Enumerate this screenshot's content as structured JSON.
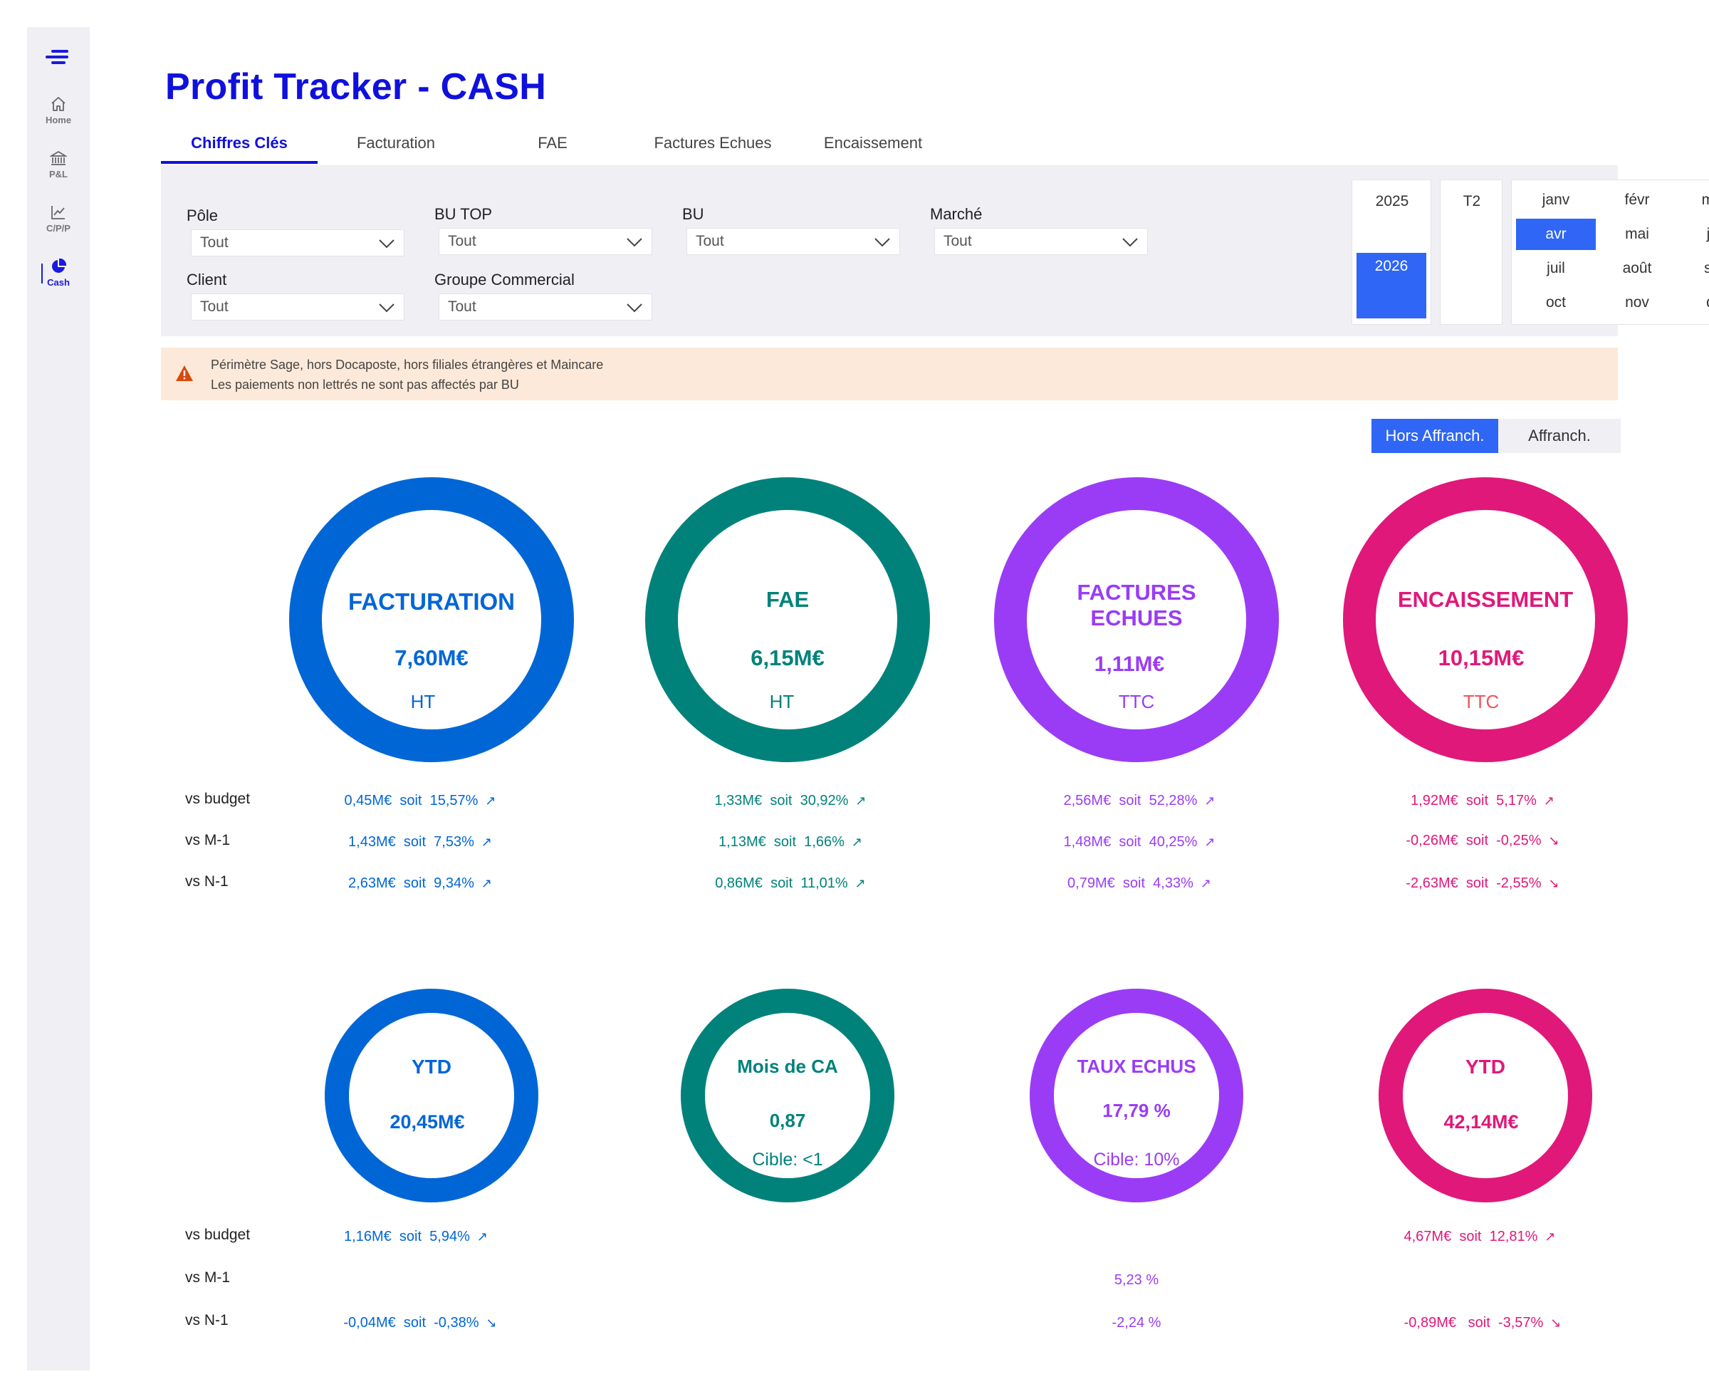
{
  "sidebar": {
    "items": [
      {
        "label": "Home",
        "icon": "home-icon"
      },
      {
        "label": "P&L",
        "icon": "bank-icon"
      },
      {
        "label": "C/P/P",
        "icon": "chart-line-icon"
      },
      {
        "label": "Cash",
        "icon": "pie-icon"
      }
    ],
    "active": "Cash"
  },
  "title": "Profit Tracker - CASH",
  "tabs": [
    "Chiffres Clés",
    "Facturation",
    "FAE",
    "Factures Echues",
    "Encaissement"
  ],
  "filters": {
    "pole": {
      "label": "Pôle",
      "value": "Tout"
    },
    "bu_top": {
      "label": "BU TOP",
      "value": "Tout"
    },
    "bu": {
      "label": "BU",
      "value": "Tout"
    },
    "marche": {
      "label": "Marché",
      "value": "Tout"
    },
    "client": {
      "label": "Client",
      "value": "Tout"
    },
    "groupe": {
      "label": "Groupe Commercial",
      "value": "Tout"
    }
  },
  "years": [
    "2025",
    "2026"
  ],
  "selected_year": "2026",
  "quarter": "T2",
  "months": [
    "janv",
    "févr",
    "mars",
    "avr",
    "mai",
    "juin",
    "juil",
    "août",
    "sept",
    "oct",
    "nov",
    "déc"
  ],
  "selected_month": "avr",
  "warning": {
    "line1": "Périmètre Sage, hors Docaposte, hors filiales étrangères et Maincare",
    "line2": "Les paiements non lettrés ne sont pas affectés par BU"
  },
  "toggle": {
    "active": "Hors Affranch.",
    "inactive": "Affranch."
  },
  "row_labels": {
    "budget": "vs budget",
    "m1": "vs M-1",
    "n1": "vs N-1"
  },
  "colors": {
    "blue": "#0066d6",
    "teal": "#00827b",
    "purple": "#9a3cf5",
    "pink": "#e0187a",
    "accent": "#2f66f5"
  },
  "kpis_top": [
    {
      "title": "FACTURATION",
      "value": "7,60M€",
      "unit": "HT",
      "vs_budget": {
        "amount": "0,45M€",
        "soit": "soit",
        "pct": "15,57%",
        "arrow": "↗"
      },
      "vs_m1": {
        "amount": "1,43M€",
        "soit": "soit",
        "pct": "7,53%",
        "arrow": "↗"
      },
      "vs_n1": {
        "amount": "2,63M€",
        "soit": "soit",
        "pct": "9,34%",
        "arrow": "↗"
      }
    },
    {
      "title": "FAE",
      "value": "6,15M€",
      "unit": "HT",
      "vs_budget": {
        "amount": "1,33M€",
        "soit": "soit",
        "pct": "30,92%",
        "arrow": "↗"
      },
      "vs_m1": {
        "amount": "1,13M€",
        "soit": "soit",
        "pct": "1,66%",
        "arrow": "↗"
      },
      "vs_n1": {
        "amount": "0,86M€",
        "soit": "soit",
        "pct": "11,01%",
        "arrow": "↗"
      }
    },
    {
      "title1": "FACTURES",
      "title2": "ECHUES",
      "value": "1,11M€",
      "unit": "TTC",
      "vs_budget": {
        "amount": "2,56M€",
        "soit": "soit",
        "pct": "52,28%",
        "arrow": "↗"
      },
      "vs_m1": {
        "amount": "1,48M€",
        "soit": "soit",
        "pct": "40,25%",
        "arrow": "↗"
      },
      "vs_n1": {
        "amount": "0,79M€",
        "soit": "soit",
        "pct": "4,33%",
        "arrow": "↗"
      }
    },
    {
      "title": "ENCAISSEMENT",
      "value": "10,15M€",
      "unit": "TTC",
      "vs_budget": {
        "amount": "1,92M€",
        "soit": "soit",
        "pct": "5,17%",
        "arrow": "↗"
      },
      "vs_m1": {
        "amount": "-0,26M€",
        "soit": "soit",
        "pct": "-0,25%",
        "arrow": "↘"
      },
      "vs_n1": {
        "amount": "-2,63M€",
        "soit": "soit",
        "pct": "-2,55%",
        "arrow": "↘"
      }
    }
  ],
  "kpis_bottom": [
    {
      "title": "YTD",
      "value": "20,45M€",
      "vs_budget": {
        "amount": "1,16M€",
        "soit": "soit",
        "pct": "5,94%",
        "arrow": "↗"
      },
      "vs_n1": {
        "amount": "-0,04M€",
        "soit": "soit",
        "pct": "-0,38%",
        "arrow": "↘"
      }
    },
    {
      "title": "Mois de CA",
      "value": "0,87",
      "target": "Cible:  <1"
    },
    {
      "title": "TAUX ECHUS",
      "value": "17,79 %",
      "target": "Cible: 10%",
      "vs_m1": "5,23 %",
      "vs_n1": "-2,24 %"
    },
    {
      "title": "YTD",
      "value": "42,14M€",
      "vs_budget": {
        "amount": "4,67M€",
        "soit": "soit",
        "pct": "12,81%",
        "arrow": "↗"
      },
      "vs_n1": {
        "amount": "-0,89M€",
        "soit": "soit",
        "pct": "-3,57%",
        "arrow": "↘"
      }
    }
  ]
}
